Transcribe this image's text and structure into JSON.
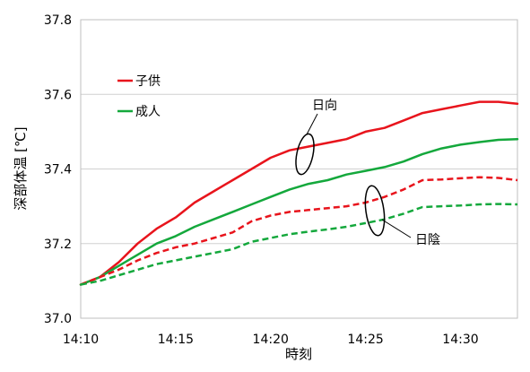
{
  "chart_data": {
    "type": "line",
    "title": "",
    "xlabel": "時刻",
    "ylabel": "深部体温 [℃]",
    "xlim": [
      "14:10",
      "14:33"
    ],
    "ylim": [
      37.0,
      37.8
    ],
    "yticks": [
      "37.0",
      "37.2",
      "37.4",
      "37.6",
      "37.8"
    ],
    "xticks": [
      "14:10",
      "14:15",
      "14:20",
      "14:25",
      "14:30"
    ],
    "grid": "horizontal",
    "legend_position": "top-left",
    "colors": {
      "red": "#e8141c",
      "green": "#14a83c"
    },
    "legend": [
      {
        "label": "子供",
        "color": "#e8141c"
      },
      {
        "label": "成人",
        "color": "#14a83c"
      }
    ],
    "annotations": [
      {
        "label": "日向",
        "target": "solid lines (sun)"
      },
      {
        "label": "日陰",
        "target": "dashed lines (shade)"
      }
    ],
    "series": [
      {
        "name": "子供",
        "condition": "日向",
        "color": "#e8141c",
        "dash": "solid",
        "x": [
          "14:10",
          "14:11",
          "14:12",
          "14:13",
          "14:14",
          "14:15",
          "14:16",
          "14:17",
          "14:18",
          "14:19",
          "14:20",
          "14:21",
          "14:22",
          "14:23",
          "14:24",
          "14:25",
          "14:26",
          "14:27",
          "14:28",
          "14:29",
          "14:30",
          "14:31",
          "14:32",
          "14:33"
        ],
        "values": [
          37.09,
          37.11,
          37.15,
          37.2,
          37.24,
          37.27,
          37.31,
          37.34,
          37.37,
          37.4,
          37.43,
          37.45,
          37.46,
          37.47,
          37.48,
          37.5,
          37.51,
          37.53,
          37.55,
          37.56,
          37.57,
          37.58,
          37.58,
          37.575
        ]
      },
      {
        "name": "成人",
        "condition": "日向",
        "color": "#14a83c",
        "dash": "solid",
        "x": [
          "14:10",
          "14:11",
          "14:12",
          "14:13",
          "14:14",
          "14:15",
          "14:16",
          "14:17",
          "14:18",
          "14:19",
          "14:20",
          "14:21",
          "14:22",
          "14:23",
          "14:24",
          "14:25",
          "14:26",
          "14:27",
          "14:28",
          "14:29",
          "14:30",
          "14:31",
          "14:32",
          "14:33"
        ],
        "values": [
          37.09,
          37.11,
          37.14,
          37.17,
          37.2,
          37.22,
          37.245,
          37.265,
          37.285,
          37.305,
          37.325,
          37.345,
          37.36,
          37.37,
          37.385,
          37.395,
          37.405,
          37.42,
          37.44,
          37.455,
          37.465,
          37.472,
          37.478,
          37.48
        ]
      },
      {
        "name": "子供",
        "condition": "日陰",
        "color": "#e8141c",
        "dash": "dashed",
        "x": [
          "14:10",
          "14:11",
          "14:12",
          "14:13",
          "14:14",
          "14:15",
          "14:16",
          "14:17",
          "14:18",
          "14:19",
          "14:20",
          "14:21",
          "14:22",
          "14:23",
          "14:24",
          "14:25",
          "14:26",
          "14:27",
          "14:28",
          "14:29",
          "14:30",
          "14:31",
          "14:32",
          "14:33"
        ],
        "values": [
          37.09,
          37.11,
          37.13,
          37.155,
          37.175,
          37.19,
          37.2,
          37.215,
          37.23,
          37.26,
          37.275,
          37.285,
          37.29,
          37.295,
          37.3,
          37.31,
          37.325,
          37.345,
          37.37,
          37.372,
          37.375,
          37.378,
          37.376,
          37.37
        ]
      },
      {
        "name": "成人",
        "condition": "日陰",
        "color": "#14a83c",
        "dash": "dashed",
        "x": [
          "14:10",
          "14:11",
          "14:12",
          "14:13",
          "14:14",
          "14:15",
          "14:16",
          "14:17",
          "14:18",
          "14:19",
          "14:20",
          "14:21",
          "14:22",
          "14:23",
          "14:24",
          "14:25",
          "14:26",
          "14:27",
          "14:28",
          "14:29",
          "14:30",
          "14:31",
          "14:32",
          "14:33"
        ],
        "values": [
          37.09,
          37.1,
          37.115,
          37.13,
          37.145,
          37.155,
          37.165,
          37.175,
          37.185,
          37.205,
          37.215,
          37.225,
          37.232,
          37.238,
          37.245,
          37.255,
          37.265,
          37.28,
          37.298,
          37.3,
          37.302,
          37.305,
          37.306,
          37.305
        ]
      }
    ]
  }
}
